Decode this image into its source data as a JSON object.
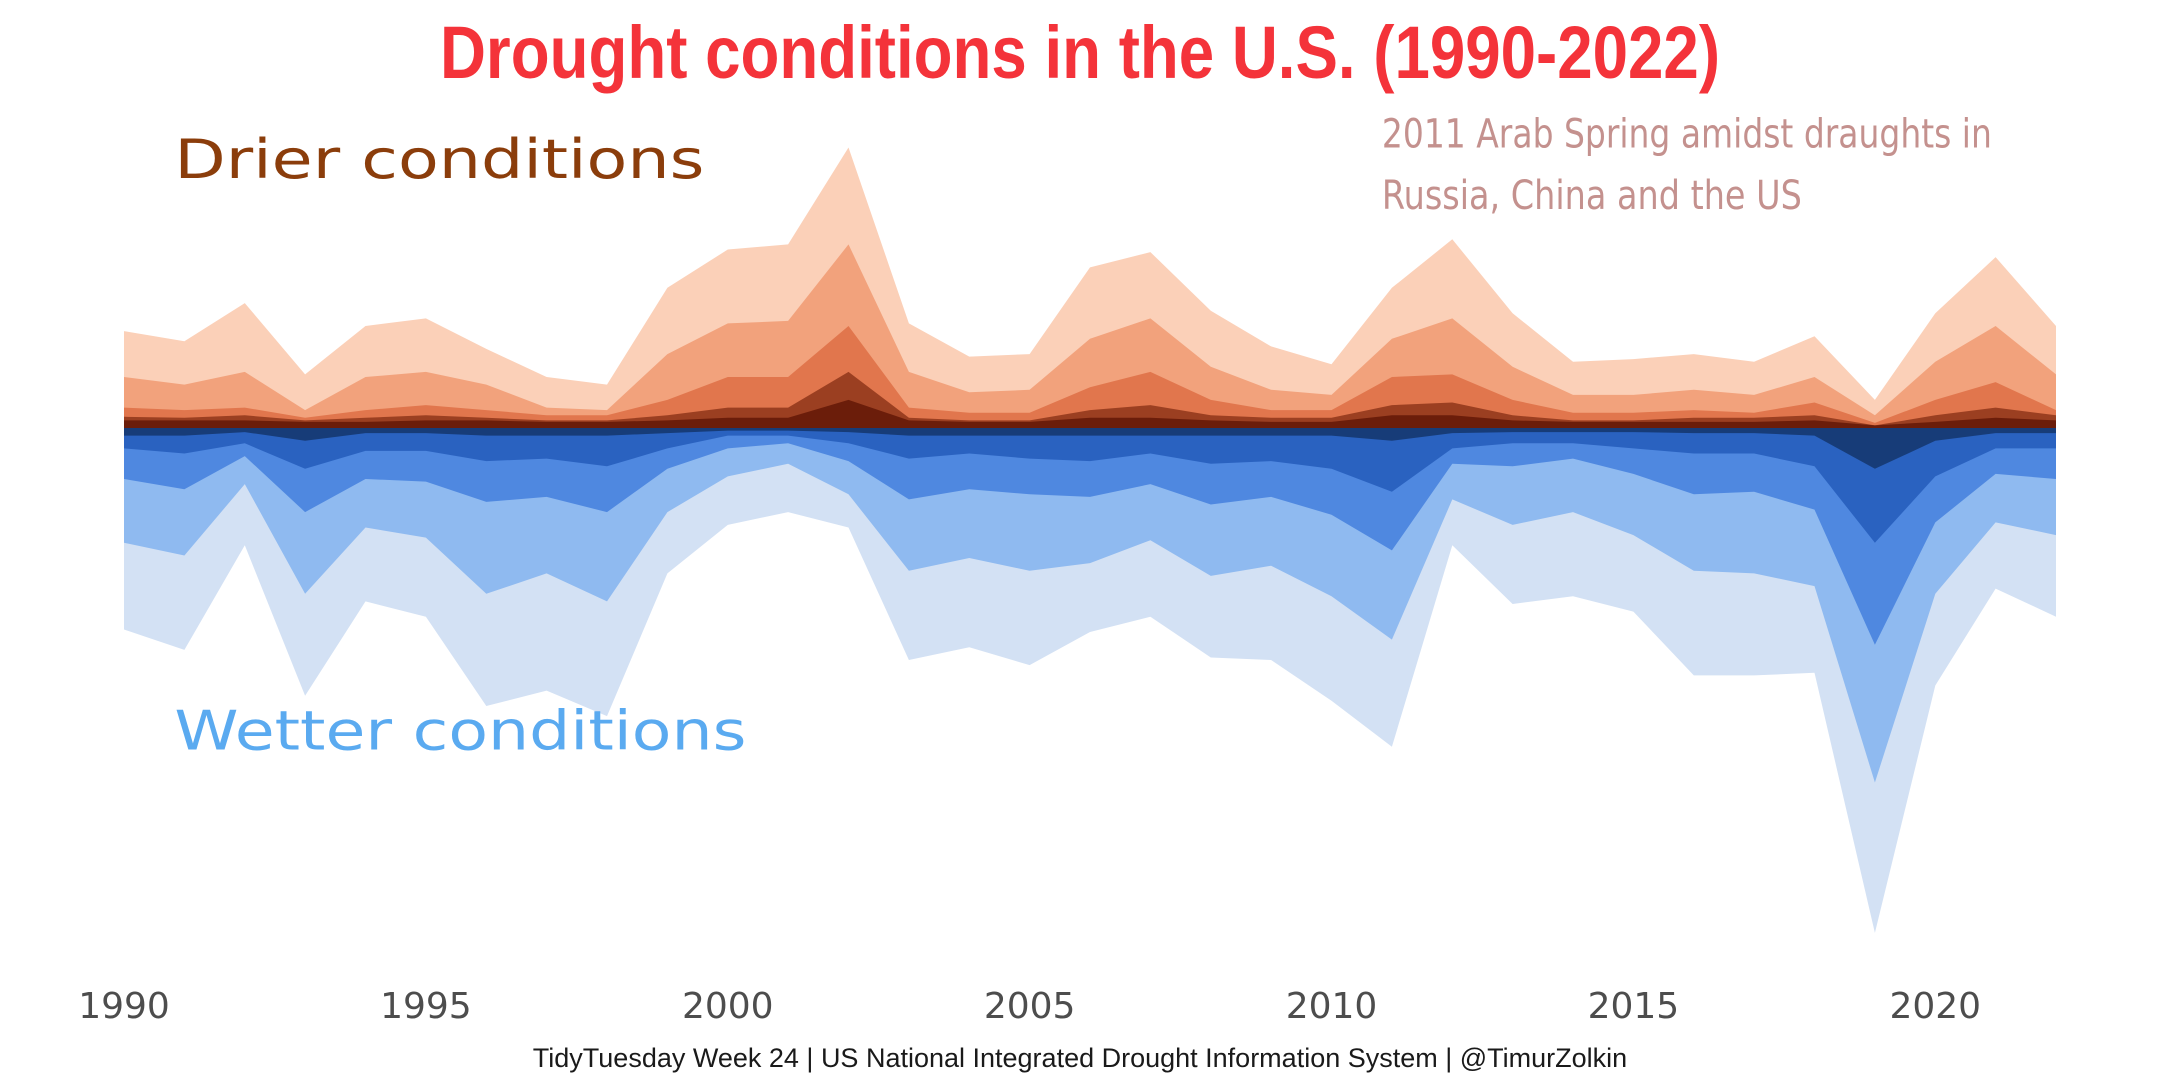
{
  "title": "Drought conditions in the U.S. (1990-2022)",
  "caption": "TidyTuesday Week 24 | US National Integrated Drought Information System | @TimurZolkin",
  "colors": {
    "title": "#f4333a",
    "drier_label": "#8b3d0b",
    "wetter_label": "#5aaaf0",
    "annotation": "#c4918e",
    "dry_layers": [
      "#6b1d0a",
      "#9b3f21",
      "#e1764d",
      "#f2a27c",
      "#fbd0b8"
    ],
    "wet_layers": [
      "#173c78",
      "#2a62c0",
      "#4f88e0",
      "#8fbaf0",
      "#d3e1f4"
    ]
  },
  "chart_data": {
    "type": "area",
    "subtype": "diverging stacked area (streamgraph)",
    "title": "Drought conditions in the U.S. (1990-2022)",
    "xlabel": "",
    "ylabel": "",
    "x_ticks": [
      1990,
      1995,
      2000,
      2005,
      2010,
      2015,
      2020
    ],
    "xlim": [
      1990,
      2022
    ],
    "ylim": [
      -100,
      55
    ],
    "grid": false,
    "legend": "none",
    "x": [
      1990,
      1991,
      1992,
      1993,
      1994,
      1995,
      1996,
      1997,
      1998,
      1999,
      2000,
      2001,
      2002,
      2003,
      2004,
      2005,
      2006,
      2007,
      2008,
      2009,
      2010,
      2011,
      2012,
      2013,
      2014,
      2015,
      2016,
      2017,
      2018,
      2019,
      2020,
      2021,
      2022
    ],
    "dry_cumulative": [
      [
        1.5,
        1.5,
        1.5,
        1.2,
        1.2,
        1.5,
        1.5,
        1.2,
        1.2,
        1.5,
        2.0,
        2.0,
        5.5,
        1.5,
        1.2,
        1.2,
        2.0,
        2.0,
        1.5,
        1.2,
        1.2,
        2.5,
        2.5,
        1.5,
        1.2,
        1.2,
        1.2,
        1.2,
        1.5,
        0.5,
        1.2,
        2.0,
        1.5
      ],
      [
        2.2,
        2.0,
        2.5,
        1.5,
        2.0,
        2.5,
        2.0,
        1.5,
        1.5,
        2.5,
        4.0,
        4.0,
        11.0,
        2.0,
        1.5,
        1.5,
        3.5,
        4.5,
        2.5,
        2.0,
        2.0,
        4.5,
        5.0,
        2.5,
        1.5,
        1.5,
        2.0,
        2.0,
        2.5,
        0.5,
        2.5,
        4.0,
        2.5
      ],
      [
        4.0,
        3.5,
        4.0,
        2.0,
        3.5,
        4.5,
        3.5,
        2.5,
        2.5,
        5.5,
        10.0,
        10.0,
        20.0,
        4.0,
        3.0,
        3.0,
        8.0,
        11.0,
        5.5,
        3.5,
        3.5,
        10.0,
        10.5,
        5.5,
        3.0,
        3.0,
        3.5,
        3.0,
        5.0,
        1.0,
        5.5,
        9.0,
        3.5
      ],
      [
        10.0,
        8.5,
        11.0,
        3.5,
        10.0,
        11.0,
        8.5,
        4.0,
        3.5,
        14.5,
        20.5,
        21.0,
        36.0,
        11.0,
        7.0,
        7.5,
        17.5,
        21.5,
        12.0,
        7.5,
        6.5,
        17.5,
        21.5,
        12.0,
        6.5,
        6.5,
        7.5,
        6.5,
        10.0,
        2.5,
        13.0,
        20.0,
        10.5
      ],
      [
        19.0,
        17.0,
        24.5,
        10.5,
        20.0,
        21.5,
        15.5,
        10.0,
        8.5,
        27.5,
        35.0,
        36.0,
        55.0,
        20.5,
        14.0,
        14.5,
        31.5,
        34.5,
        23.0,
        16.0,
        12.5,
        27.5,
        37.0,
        22.5,
        13.0,
        13.5,
        14.5,
        13.0,
        18.0,
        5.5,
        22.5,
        33.5,
        20.0
      ]
    ],
    "wet_cumulative": [
      [
        -1.5,
        -1.5,
        -0.8,
        -2.5,
        -1.0,
        -1.0,
        -1.5,
        -1.5,
        -1.5,
        -1.0,
        -0.5,
        -0.5,
        -0.8,
        -1.5,
        -1.5,
        -1.5,
        -1.5,
        -1.5,
        -1.5,
        -1.5,
        -1.5,
        -2.5,
        -1.0,
        -0.8,
        -0.8,
        -0.8,
        -1.0,
        -1.0,
        -1.5,
        -8.0,
        -2.5,
        -1.0,
        -1.0
      ],
      [
        -4.0,
        -5.0,
        -3.0,
        -8.0,
        -4.5,
        -4.5,
        -6.5,
        -6.0,
        -7.5,
        -4.0,
        -1.5,
        -1.5,
        -3.0,
        -6.0,
        -5.0,
        -6.0,
        -6.5,
        -5.0,
        -7.0,
        -6.5,
        -8.0,
        -12.5,
        -4.0,
        -3.0,
        -3.0,
        -4.0,
        -5.0,
        -5.0,
        -7.5,
        -22.5,
        -9.5,
        -4.0,
        -4.0
      ],
      [
        -10.0,
        -12.0,
        -5.5,
        -16.5,
        -10.0,
        -10.5,
        -14.5,
        -13.5,
        -16.5,
        -8.0,
        -4.0,
        -3.0,
        -6.5,
        -14.0,
        -12.0,
        -13.0,
        -13.5,
        -11.0,
        -15.0,
        -13.5,
        -17.0,
        -24.0,
        -7.0,
        -7.5,
        -6.0,
        -9.0,
        -13.0,
        -12.5,
        -16.0,
        -42.5,
        -18.5,
        -9.0,
        -10.0
      ],
      [
        -22.5,
        -25.0,
        -11.0,
        -32.5,
        -19.5,
        -21.5,
        -32.5,
        -28.5,
        -34.0,
        -16.5,
        -9.5,
        -7.0,
        -13.0,
        -28.0,
        -25.5,
        -28.0,
        -26.5,
        -22.0,
        -29.0,
        -27.0,
        -33.0,
        -41.5,
        -14.0,
        -19.0,
        -16.5,
        -21.0,
        -28.0,
        -28.5,
        -31.0,
        -69.5,
        -32.5,
        -18.5,
        -21.0
      ],
      [
        -39.5,
        -43.5,
        -23.0,
        -52.5,
        -34.0,
        -37.0,
        -54.5,
        -51.5,
        -56.5,
        -28.5,
        -19.0,
        -16.5,
        -19.5,
        -45.5,
        -43.0,
        -46.5,
        -40.0,
        -37.0,
        -45.0,
        -45.5,
        -53.5,
        -62.5,
        -23.0,
        -34.5,
        -33.0,
        -36.0,
        -48.5,
        -48.5,
        -48.0,
        -99.0,
        -50.5,
        -31.5,
        -37.0
      ]
    ],
    "annotations": [
      {
        "text": "Drier conditions",
        "x": 1991,
        "y": 49
      },
      {
        "text": "Wetter conditions",
        "x": 1991,
        "y": -63
      },
      {
        "lines": [
          "2011 Arab Spring amidst draughts in",
          "Russia, China and the US"
        ],
        "x": 2011,
        "y": [
          53,
          41
        ]
      }
    ]
  }
}
